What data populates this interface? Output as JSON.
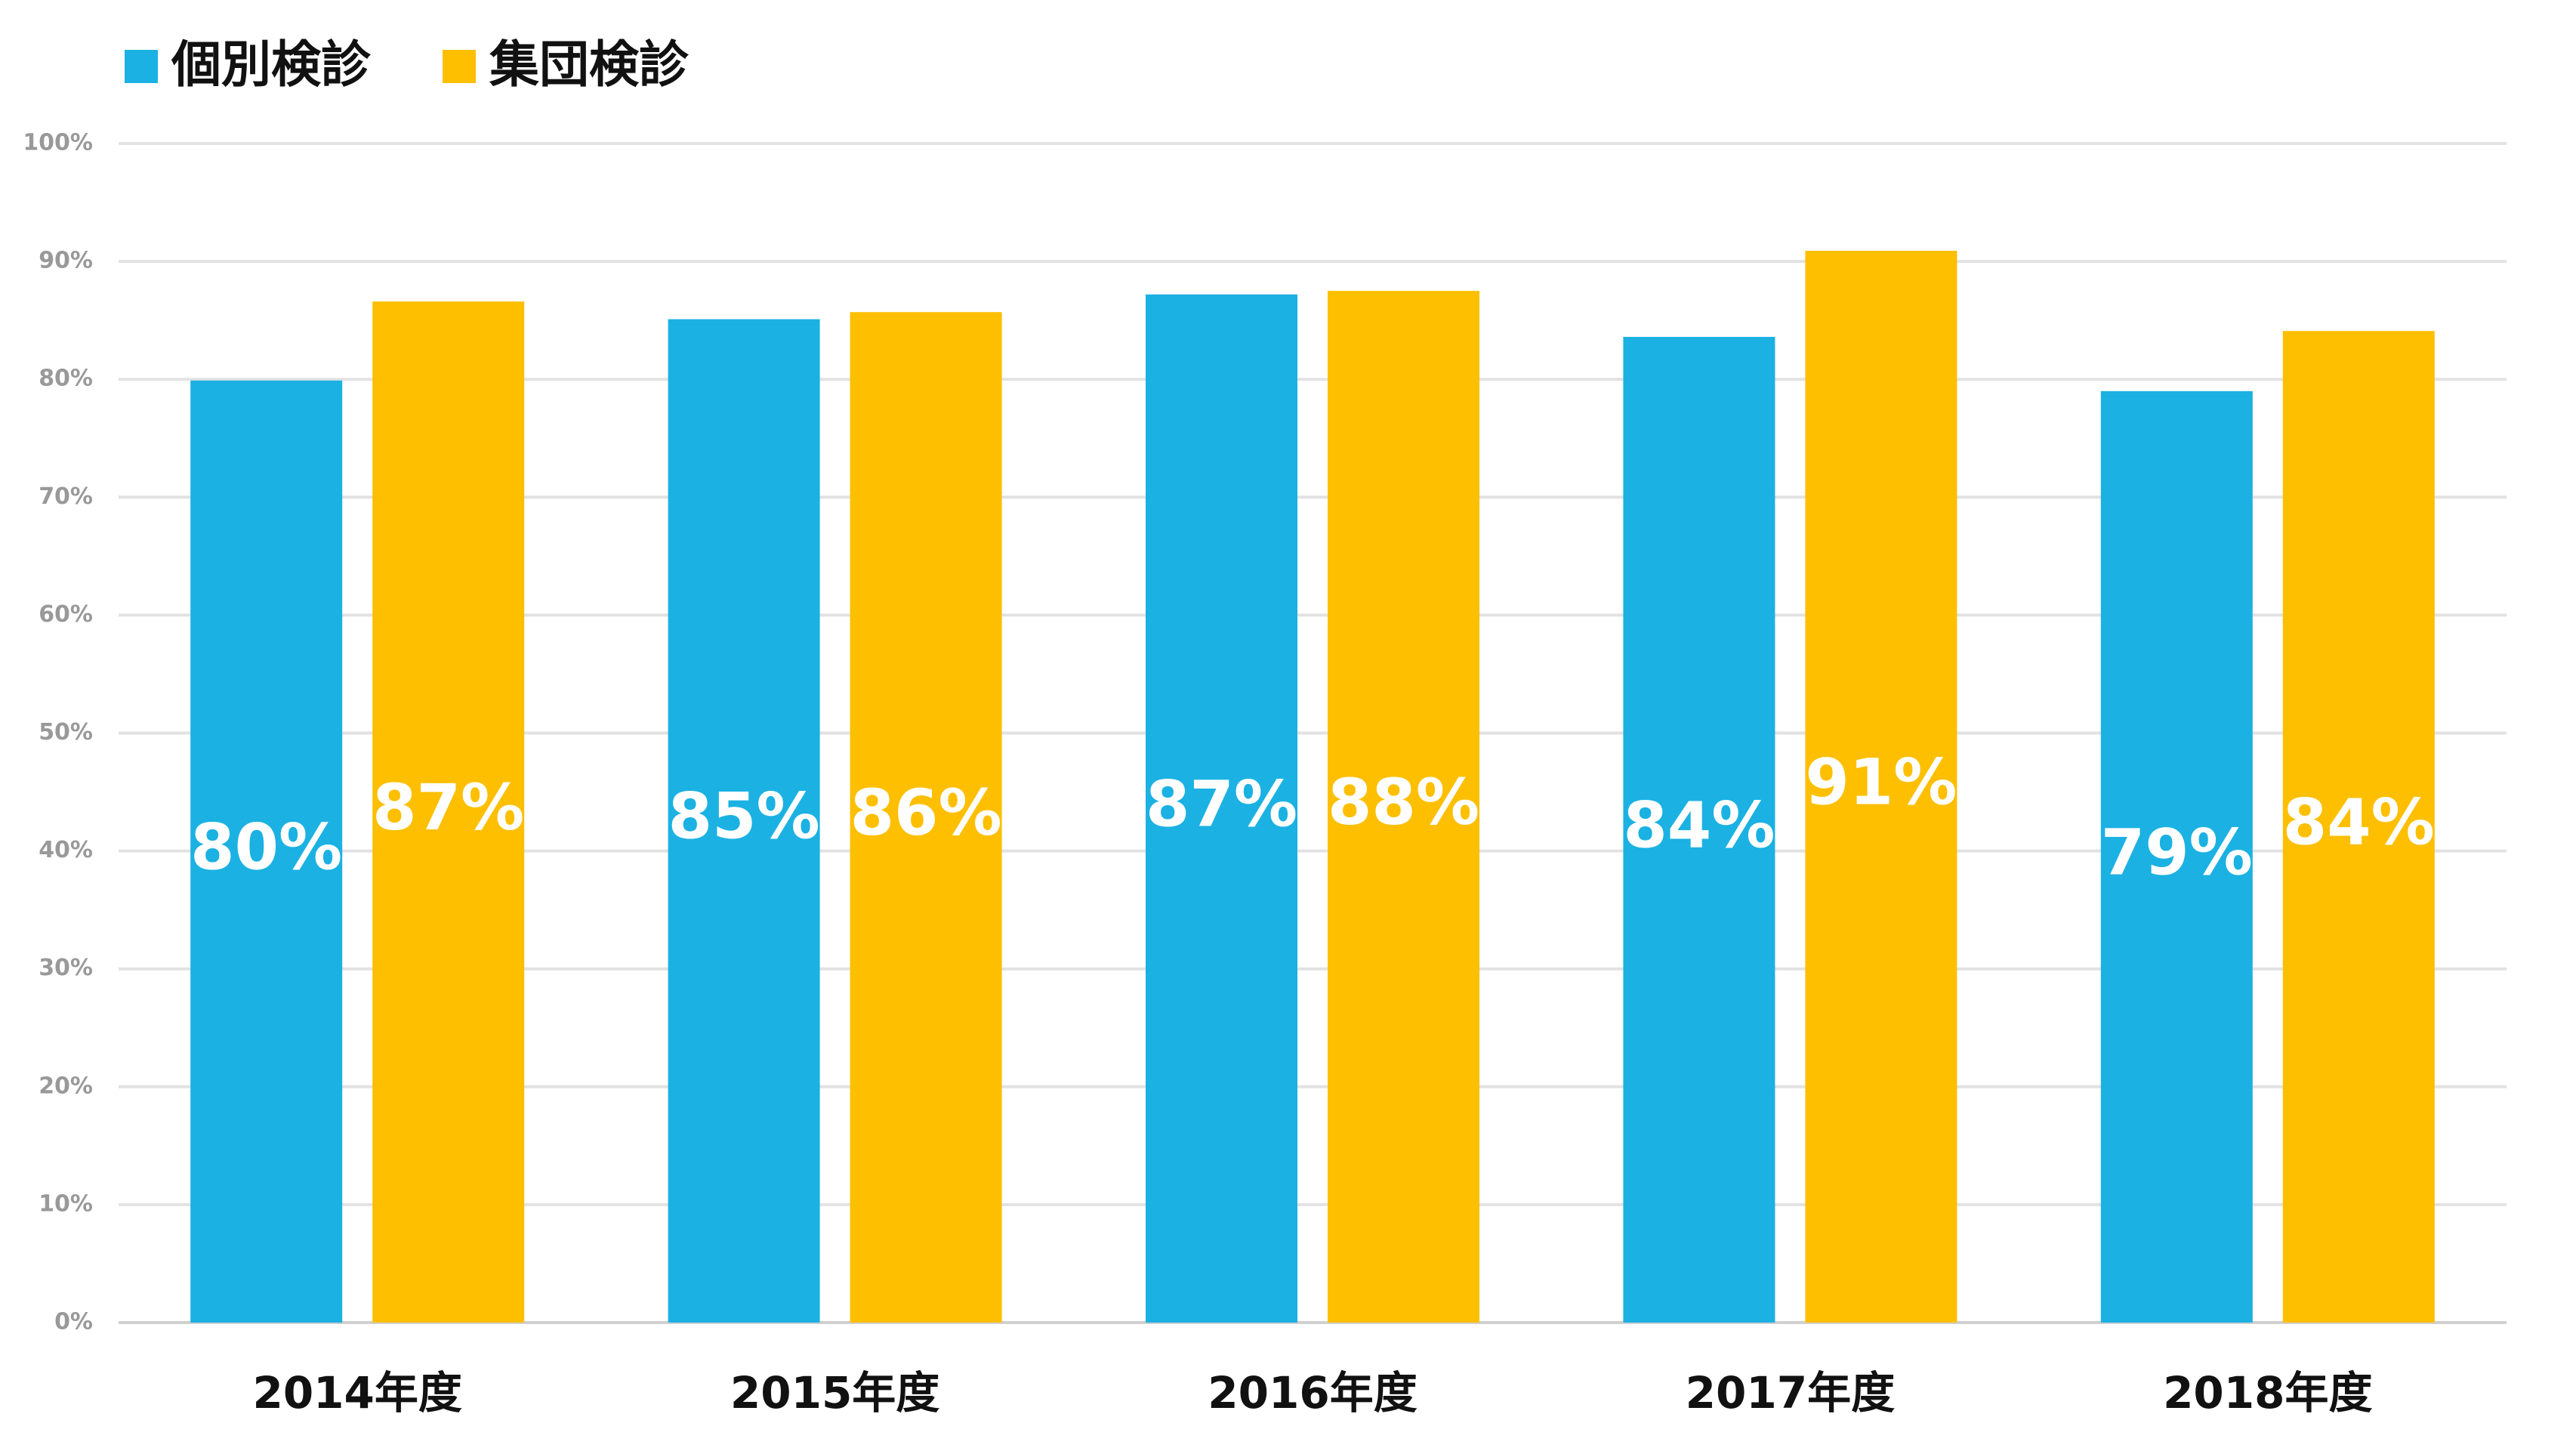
{
  "chart_data": {
    "type": "bar",
    "categories": [
      "2014年度",
      "2015年度",
      "2016年度",
      "2017年度",
      "2018年度"
    ],
    "series": [
      {
        "name": "個別検診",
        "color": "#1bb1e3",
        "values": [
          79.9,
          85.1,
          87.2,
          83.6,
          79.0
        ],
        "value_labels": [
          "80%",
          "85%",
          "87%",
          "84%",
          "79%"
        ]
      },
      {
        "name": "集団検診",
        "color": "#fdbf00",
        "values": [
          86.6,
          85.7,
          87.5,
          90.9,
          84.1
        ],
        "value_labels": [
          "87%",
          "86%",
          "88%",
          "91%",
          "84%"
        ]
      }
    ],
    "ylim": [
      0,
      100
    ],
    "yticks": [
      {
        "value": 0,
        "label": "0%"
      },
      {
        "value": 10,
        "label": "10%"
      },
      {
        "value": 20,
        "label": "20%"
      },
      {
        "value": 30,
        "label": "30%"
      },
      {
        "value": 40,
        "label": "40%"
      },
      {
        "value": 50,
        "label": "50%"
      },
      {
        "value": 60,
        "label": "60%"
      },
      {
        "value": 70,
        "label": "70%"
      },
      {
        "value": 80,
        "label": "80%"
      },
      {
        "value": 90,
        "label": "90%"
      },
      {
        "value": 100,
        "label": "100%"
      }
    ],
    "grid": true,
    "legend": "top-left"
  }
}
